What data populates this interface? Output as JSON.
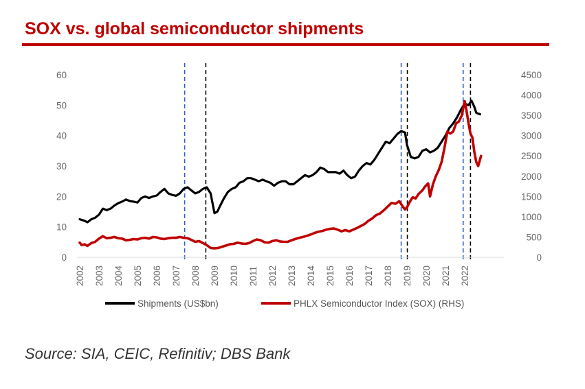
{
  "title": "SOX vs. global semiconductor shipments",
  "source": "Source: SIA, CEIC, Refinitiv; DBS Bank",
  "chart_data": {
    "type": "line",
    "title": "SOX vs. global semiconductor shipments",
    "x_ticks": [
      "2002",
      "2003",
      "2004",
      "2005",
      "2006",
      "2007",
      "2008",
      "2009",
      "2010",
      "2011",
      "2012",
      "2013",
      "2014",
      "2015",
      "2016",
      "2017",
      "2018",
      "2019",
      "2020",
      "2021",
      "2022"
    ],
    "y_left": {
      "ylim": [
        0,
        60
      ],
      "ticks": [
        "0",
        "10",
        "20",
        "30",
        "40",
        "50",
        "60"
      ],
      "label": ""
    },
    "y_right": {
      "ylim": [
        0,
        4500
      ],
      "ticks": [
        "0",
        "500",
        "1000",
        "1500",
        "2000",
        "2500",
        "3000",
        "3500",
        "4000",
        "4500"
      ],
      "label": ""
    },
    "colors": {
      "shipments": "#000000",
      "sox": "#c00000",
      "blue_dash": "#2e5cc8",
      "black_dash": "#000000"
    },
    "series": [
      {
        "name": "Shipments (US$bn)",
        "axis": "left",
        "points": [
          [
            2002.0,
            12.5
          ],
          [
            2002.25,
            12.0
          ],
          [
            2002.4,
            11.5
          ],
          [
            2002.6,
            12.5
          ],
          [
            2002.8,
            13.0
          ],
          [
            2003.0,
            14.0
          ],
          [
            2003.2,
            16.0
          ],
          [
            2003.4,
            15.5
          ],
          [
            2003.6,
            16.0
          ],
          [
            2003.8,
            17.0
          ],
          [
            2004.0,
            17.8
          ],
          [
            2004.2,
            18.3
          ],
          [
            2004.4,
            19.0
          ],
          [
            2004.6,
            18.5
          ],
          [
            2004.8,
            18.3
          ],
          [
            2005.0,
            18.0
          ],
          [
            2005.2,
            19.5
          ],
          [
            2005.4,
            20.0
          ],
          [
            2005.6,
            19.5
          ],
          [
            2005.8,
            20.0
          ],
          [
            2006.0,
            20.3
          ],
          [
            2006.2,
            21.5
          ],
          [
            2006.4,
            22.5
          ],
          [
            2006.6,
            21.0
          ],
          [
            2006.8,
            20.5
          ],
          [
            2007.0,
            20.2
          ],
          [
            2007.2,
            21.0
          ],
          [
            2007.4,
            22.5
          ],
          [
            2007.6,
            23.0
          ],
          [
            2007.8,
            22.0
          ],
          [
            2008.0,
            21.0
          ],
          [
            2008.2,
            21.5
          ],
          [
            2008.4,
            22.5
          ],
          [
            2008.6,
            23.0
          ],
          [
            2008.8,
            21.0
          ],
          [
            2009.0,
            14.5
          ],
          [
            2009.15,
            15.0
          ],
          [
            2009.3,
            17.0
          ],
          [
            2009.5,
            19.5
          ],
          [
            2009.7,
            21.5
          ],
          [
            2009.9,
            22.5
          ],
          [
            2010.1,
            23.0
          ],
          [
            2010.3,
            24.5
          ],
          [
            2010.5,
            25.0
          ],
          [
            2010.7,
            26.0
          ],
          [
            2010.9,
            26.0
          ],
          [
            2011.1,
            25.5
          ],
          [
            2011.3,
            25.0
          ],
          [
            2011.5,
            25.5
          ],
          [
            2011.7,
            25.0
          ],
          [
            2011.9,
            24.5
          ],
          [
            2012.1,
            23.5
          ],
          [
            2012.3,
            24.5
          ],
          [
            2012.5,
            25.0
          ],
          [
            2012.7,
            25.0
          ],
          [
            2012.9,
            24.0
          ],
          [
            2013.1,
            24.0
          ],
          [
            2013.3,
            25.0
          ],
          [
            2013.5,
            26.0
          ],
          [
            2013.7,
            27.0
          ],
          [
            2013.9,
            26.5
          ],
          [
            2014.1,
            27.0
          ],
          [
            2014.3,
            28.0
          ],
          [
            2014.5,
            29.5
          ],
          [
            2014.7,
            29.0
          ],
          [
            2014.9,
            28.0
          ],
          [
            2015.1,
            28.0
          ],
          [
            2015.3,
            28.0
          ],
          [
            2015.5,
            27.5
          ],
          [
            2015.7,
            28.5
          ],
          [
            2015.9,
            27.0
          ],
          [
            2016.1,
            26.0
          ],
          [
            2016.3,
            26.5
          ],
          [
            2016.5,
            28.5
          ],
          [
            2016.7,
            30.0
          ],
          [
            2016.9,
            31.0
          ],
          [
            2017.1,
            30.5
          ],
          [
            2017.3,
            32.0
          ],
          [
            2017.5,
            34.0
          ],
          [
            2017.7,
            36.0
          ],
          [
            2017.9,
            38.0
          ],
          [
            2018.1,
            37.5
          ],
          [
            2018.3,
            39.0
          ],
          [
            2018.5,
            40.5
          ],
          [
            2018.7,
            41.5
          ],
          [
            2018.9,
            41.0
          ],
          [
            2019.0,
            37.0
          ],
          [
            2019.2,
            33.0
          ],
          [
            2019.4,
            32.5
          ],
          [
            2019.6,
            33.0
          ],
          [
            2019.8,
            35.0
          ],
          [
            2020.0,
            35.5
          ],
          [
            2020.2,
            34.5
          ],
          [
            2020.4,
            35.0
          ],
          [
            2020.6,
            36.0
          ],
          [
            2020.8,
            38.0
          ],
          [
            2021.0,
            40.0
          ],
          [
            2021.2,
            42.5
          ],
          [
            2021.4,
            44.0
          ],
          [
            2021.6,
            46.0
          ],
          [
            2021.8,
            48.5
          ],
          [
            2022.0,
            50.5
          ],
          [
            2022.2,
            50.0
          ],
          [
            2022.35,
            51.5
          ],
          [
            2022.5,
            49.5
          ],
          [
            2022.6,
            47.5
          ],
          [
            2022.8,
            47.0
          ]
        ]
      },
      {
        "name": "PHLX Semiconductor Index (SOX) (RHS)",
        "axis": "right",
        "points": [
          [
            2002.0,
            360
          ],
          [
            2002.1,
            300
          ],
          [
            2002.25,
            320
          ],
          [
            2002.4,
            280
          ],
          [
            2002.6,
            350
          ],
          [
            2002.8,
            380
          ],
          [
            2003.0,
            460
          ],
          [
            2003.2,
            520
          ],
          [
            2003.4,
            470
          ],
          [
            2003.6,
            480
          ],
          [
            2003.8,
            500
          ],
          [
            2004.0,
            470
          ],
          [
            2004.2,
            460
          ],
          [
            2004.4,
            420
          ],
          [
            2004.6,
            430
          ],
          [
            2004.8,
            450
          ],
          [
            2005.0,
            440
          ],
          [
            2005.2,
            470
          ],
          [
            2005.4,
            480
          ],
          [
            2005.6,
            460
          ],
          [
            2005.8,
            500
          ],
          [
            2006.0,
            490
          ],
          [
            2006.2,
            460
          ],
          [
            2006.4,
            450
          ],
          [
            2006.6,
            470
          ],
          [
            2006.8,
            480
          ],
          [
            2007.0,
            480
          ],
          [
            2007.2,
            500
          ],
          [
            2007.4,
            480
          ],
          [
            2007.6,
            470
          ],
          [
            2007.8,
            430
          ],
          [
            2008.0,
            380
          ],
          [
            2008.2,
            400
          ],
          [
            2008.4,
            350
          ],
          [
            2008.6,
            300
          ],
          [
            2008.8,
            230
          ],
          [
            2009.0,
            220
          ],
          [
            2009.2,
            230
          ],
          [
            2009.4,
            260
          ],
          [
            2009.6,
            290
          ],
          [
            2009.8,
            320
          ],
          [
            2010.0,
            330
          ],
          [
            2010.2,
            360
          ],
          [
            2010.4,
            340
          ],
          [
            2010.6,
            330
          ],
          [
            2010.8,
            350
          ],
          [
            2011.0,
            400
          ],
          [
            2011.2,
            440
          ],
          [
            2011.4,
            420
          ],
          [
            2011.6,
            370
          ],
          [
            2011.8,
            360
          ],
          [
            2012.0,
            400
          ],
          [
            2012.2,
            420
          ],
          [
            2012.4,
            390
          ],
          [
            2012.6,
            380
          ],
          [
            2012.8,
            380
          ],
          [
            2013.0,
            420
          ],
          [
            2013.2,
            450
          ],
          [
            2013.4,
            480
          ],
          [
            2013.6,
            500
          ],
          [
            2013.8,
            530
          ],
          [
            2014.0,
            560
          ],
          [
            2014.2,
            600
          ],
          [
            2014.4,
            630
          ],
          [
            2014.6,
            650
          ],
          [
            2014.8,
            680
          ],
          [
            2015.0,
            700
          ],
          [
            2015.2,
            710
          ],
          [
            2015.4,
            680
          ],
          [
            2015.6,
            640
          ],
          [
            2015.8,
            670
          ],
          [
            2016.0,
            640
          ],
          [
            2016.2,
            680
          ],
          [
            2016.4,
            720
          ],
          [
            2016.6,
            770
          ],
          [
            2016.8,
            820
          ],
          [
            2017.0,
            900
          ],
          [
            2017.2,
            960
          ],
          [
            2017.4,
            1040
          ],
          [
            2017.6,
            1080
          ],
          [
            2017.8,
            1160
          ],
          [
            2018.0,
            1250
          ],
          [
            2018.2,
            1340
          ],
          [
            2018.4,
            1320
          ],
          [
            2018.6,
            1380
          ],
          [
            2018.8,
            1240
          ],
          [
            2018.9,
            1180
          ],
          [
            2019.0,
            1230
          ],
          [
            2019.15,
            1370
          ],
          [
            2019.3,
            1480
          ],
          [
            2019.45,
            1450
          ],
          [
            2019.6,
            1560
          ],
          [
            2019.8,
            1650
          ],
          [
            2019.95,
            1750
          ],
          [
            2020.1,
            1820
          ],
          [
            2020.2,
            1500
          ],
          [
            2020.35,
            1800
          ],
          [
            2020.5,
            2000
          ],
          [
            2020.65,
            2150
          ],
          [
            2020.8,
            2350
          ],
          [
            2020.95,
            2700
          ],
          [
            2021.1,
            3100
          ],
          [
            2021.25,
            3050
          ],
          [
            2021.4,
            3100
          ],
          [
            2021.55,
            3300
          ],
          [
            2021.7,
            3350
          ],
          [
            2021.85,
            3500
          ],
          [
            2022.0,
            3850
          ],
          [
            2022.1,
            3600
          ],
          [
            2022.2,
            3300
          ],
          [
            2022.3,
            3050
          ],
          [
            2022.4,
            2950
          ],
          [
            2022.5,
            2600
          ],
          [
            2022.6,
            2350
          ],
          [
            2022.7,
            2250
          ],
          [
            2022.85,
            2500
          ]
        ]
      }
    ],
    "vertical_markers": [
      {
        "x": 2007.45,
        "style": "blue-dashed"
      },
      {
        "x": 2008.55,
        "style": "black-dashed"
      },
      {
        "x": 2018.7,
        "style": "blue-dashed"
      },
      {
        "x": 2019.02,
        "style": "black-dashed"
      },
      {
        "x": 2021.92,
        "style": "blue-dashed"
      },
      {
        "x": 2022.3,
        "style": "black-dashed"
      }
    ],
    "legend": {
      "placement": "bottom-center",
      "entries": [
        "Shipments (US$bn)",
        "PHLX Semiconductor Index (SOX) (RHS)"
      ]
    },
    "grid": false
  }
}
